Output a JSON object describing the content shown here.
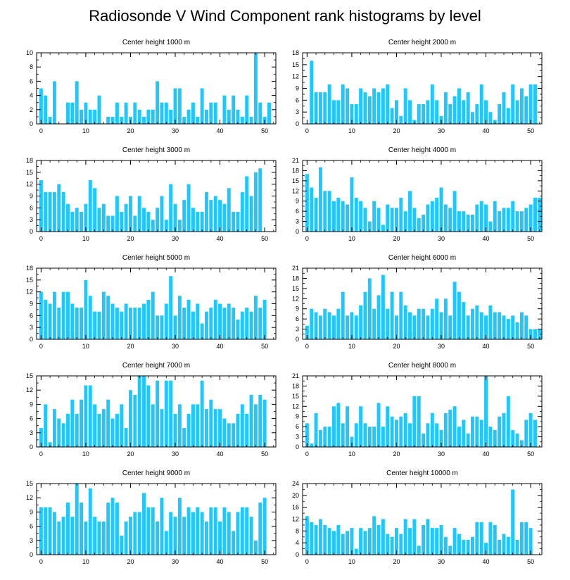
{
  "title": "Radiosonde V Wind Component rank histograms by level",
  "bar_color": "#1ec8ff",
  "chart_data": [
    {
      "type": "bar",
      "title": "Center height 1000 m",
      "ylim": [
        0,
        10
      ],
      "yticks": [
        0,
        2,
        4,
        6,
        8,
        10
      ],
      "xticks": [
        0,
        10,
        20,
        30,
        40,
        50
      ],
      "values": [
        5,
        4,
        1,
        6,
        0,
        0,
        3,
        3,
        6,
        2,
        3,
        2,
        2,
        4,
        0,
        1,
        1,
        3,
        1,
        3,
        1,
        3,
        2,
        1,
        2,
        2,
        6,
        3,
        3,
        2,
        5,
        5,
        1,
        2,
        3,
        1,
        5,
        2,
        3,
        3,
        0,
        4,
        2,
        4,
        2,
        1,
        4,
        1,
        10,
        3,
        1,
        3
      ]
    },
    {
      "type": "bar",
      "title": "Center height 2000 m",
      "ylim": [
        0,
        18
      ],
      "yticks": [
        0,
        3,
        6,
        9,
        12,
        15,
        18
      ],
      "xticks": [
        0,
        10,
        20,
        30,
        40,
        50
      ],
      "values": [
        0,
        16,
        8,
        8,
        8,
        10,
        6,
        6,
        10,
        9,
        5,
        5,
        9,
        8,
        7,
        9,
        8,
        9,
        10,
        4,
        6,
        2,
        9,
        6,
        1,
        5,
        5,
        6,
        10,
        6,
        2,
        8,
        5,
        7,
        9,
        6,
        8,
        3,
        5,
        10,
        6,
        3,
        1,
        5,
        8,
        4,
        10,
        6,
        9,
        7,
        10,
        10
      ]
    },
    {
      "type": "bar",
      "title": "Center height 3000 m",
      "ylim": [
        0,
        18
      ],
      "yticks": [
        0,
        3,
        6,
        9,
        12,
        15,
        18
      ],
      "xticks": [
        0,
        10,
        20,
        30,
        40,
        50
      ],
      "values": [
        13,
        10,
        10,
        10,
        12,
        10,
        7,
        5,
        6,
        5,
        7,
        13,
        11,
        6,
        7,
        4,
        4,
        9,
        5,
        7,
        9,
        4,
        9,
        6,
        5,
        3,
        6,
        9,
        3,
        12,
        7,
        3,
        8,
        12,
        6,
        5,
        5,
        10,
        8,
        9,
        8,
        7,
        11,
        5,
        5,
        10,
        14,
        9,
        15,
        16
      ]
    },
    {
      "type": "bar",
      "title": "Center height 4000 m",
      "ylim": [
        0,
        21
      ],
      "yticks": [
        0,
        3,
        6,
        9,
        12,
        15,
        18,
        21
      ],
      "xticks": [
        0,
        10,
        20,
        30,
        40,
        50
      ],
      "values": [
        17,
        13,
        10,
        19,
        12,
        12,
        9,
        10,
        9,
        8,
        16,
        10,
        9,
        7,
        3,
        9,
        7,
        2,
        8,
        7,
        7,
        10,
        6,
        12,
        7,
        4,
        5,
        8,
        9,
        10,
        13,
        8,
        7,
        12,
        6,
        6,
        5,
        5,
        8,
        9,
        8,
        3,
        9,
        6,
        7,
        7,
        9,
        6,
        6,
        7,
        8,
        10,
        10
      ]
    },
    {
      "type": "bar",
      "title": "Center height 5000 m",
      "ylim": [
        0,
        18
      ],
      "yticks": [
        0,
        3,
        6,
        9,
        12,
        15,
        18
      ],
      "xticks": [
        0,
        10,
        20,
        30,
        40,
        50
      ],
      "values": [
        12,
        10,
        9,
        12,
        8,
        12,
        12,
        9,
        8,
        8,
        15,
        11,
        7,
        7,
        12,
        11,
        9,
        8,
        7,
        9,
        8,
        8,
        8,
        9,
        10,
        12,
        6,
        6,
        9,
        16,
        6,
        11,
        8,
        10,
        7,
        9,
        4,
        7,
        8,
        10,
        9,
        8,
        9,
        8,
        5,
        7,
        8,
        7,
        11,
        8,
        10
      ]
    },
    {
      "type": "bar",
      "title": "Center height 6000 m",
      "ylim": [
        0,
        21
      ],
      "yticks": [
        0,
        3,
        6,
        9,
        12,
        15,
        18,
        21
      ],
      "xticks": [
        0,
        10,
        20,
        30,
        40,
        50
      ],
      "values": [
        4,
        9,
        8,
        7,
        9,
        8,
        7,
        9,
        14,
        7,
        8,
        7,
        10,
        14,
        18,
        9,
        13,
        19,
        9,
        14,
        7,
        14,
        10,
        8,
        7,
        9,
        9,
        7,
        9,
        12,
        8,
        12,
        7,
        17,
        14,
        11,
        7,
        9,
        10,
        8,
        7,
        10,
        8,
        8,
        7,
        6,
        7,
        5,
        8,
        7,
        3,
        3,
        3
      ]
    },
    {
      "type": "bar",
      "title": "Center height 7000 m",
      "ylim": [
        0,
        15
      ],
      "yticks": [
        0,
        3,
        6,
        9,
        12,
        15
      ],
      "xticks": [
        0,
        10,
        20,
        30,
        40,
        50
      ],
      "values": [
        4,
        9,
        1,
        8,
        6,
        5,
        7,
        10,
        7,
        10,
        13,
        13,
        9,
        7,
        8,
        10,
        6,
        7,
        9,
        4,
        12,
        11,
        15,
        15,
        13,
        9,
        14,
        8,
        14,
        14,
        7,
        9,
        4,
        7,
        9,
        9,
        14,
        8,
        10,
        8,
        8,
        6,
        5,
        5,
        7,
        9,
        7,
        11,
        9,
        11,
        10
      ]
    },
    {
      "type": "bar",
      "title": "Center height 8000 m",
      "ylim": [
        0,
        21
      ],
      "yticks": [
        0,
        3,
        6,
        9,
        12,
        15,
        18,
        21
      ],
      "xticks": [
        0,
        10,
        20,
        30,
        40,
        50
      ],
      "values": [
        7,
        1,
        10,
        5,
        6,
        6,
        12,
        13,
        7,
        12,
        3,
        7,
        12,
        7,
        6,
        6,
        13,
        6,
        12,
        9,
        8,
        9,
        10,
        7,
        15,
        15,
        4,
        7,
        10,
        7,
        5,
        10,
        11,
        12,
        6,
        8,
        4,
        9,
        9,
        8,
        21,
        6,
        5,
        9,
        10,
        15,
        5,
        4,
        2,
        8,
        10,
        8
      ]
    },
    {
      "type": "bar",
      "title": "Center height 9000 m",
      "ylim": [
        0,
        15
      ],
      "yticks": [
        0,
        3,
        6,
        9,
        12,
        15
      ],
      "xticks": [
        0,
        10,
        20,
        30,
        40,
        50
      ],
      "values": [
        10,
        10,
        10,
        9,
        7,
        8,
        11,
        8,
        15,
        11,
        7,
        14,
        8,
        7,
        7,
        11,
        12,
        11,
        4,
        7,
        8,
        9,
        9,
        13,
        10,
        10,
        7,
        12,
        5,
        9,
        8,
        12,
        8,
        10,
        9,
        10,
        9,
        7,
        10,
        10,
        7,
        10,
        9,
        5,
        9,
        10,
        10,
        8,
        3,
        11,
        12
      ]
    },
    {
      "type": "bar",
      "title": "Center height 10000 m",
      "ylim": [
        0,
        24
      ],
      "yticks": [
        0,
        4,
        8,
        12,
        16,
        20,
        24
      ],
      "xticks": [
        0,
        10,
        20,
        30,
        40,
        50
      ],
      "values": [
        13,
        11,
        10,
        12,
        10,
        9,
        8,
        10,
        7,
        8,
        9,
        2,
        9,
        8,
        9,
        13,
        10,
        12,
        7,
        6,
        9,
        7,
        12,
        9,
        12,
        3,
        10,
        12,
        9,
        9,
        10,
        6,
        3,
        9,
        7,
        5,
        5,
        6,
        11,
        11,
        4,
        11,
        10,
        5,
        7,
        6,
        22,
        5,
        11,
        11,
        9
      ]
    }
  ]
}
